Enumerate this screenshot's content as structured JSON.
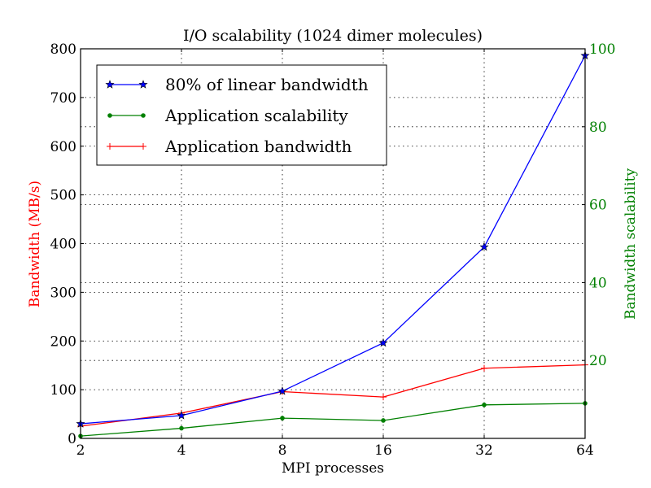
{
  "chart_data": {
    "type": "line",
    "title": "I/O scalability (1024 dimer molecules)",
    "xlabel": "MPI processes",
    "ylabel": "Bandwidth (MB/s)",
    "y2label": "Bandwidth scalability",
    "xscale": "log2",
    "x": [
      2,
      4,
      8,
      16,
      32,
      64
    ],
    "xtick_labels": [
      "2",
      "4",
      "8",
      "16",
      "32",
      "64"
    ],
    "ylim": [
      0,
      800
    ],
    "ytick_labels": [
      "0",
      "100",
      "200",
      "300",
      "400",
      "500",
      "600",
      "700",
      "800"
    ],
    "yticks": [
      0,
      100,
      200,
      300,
      400,
      500,
      600,
      700,
      800
    ],
    "y2lim": [
      0,
      100
    ],
    "y2tick_labels": [
      "20",
      "40",
      "60",
      "80",
      "100"
    ],
    "y2ticks": [
      20,
      40,
      60,
      80,
      100
    ],
    "grid": true,
    "legend_position": "top-left",
    "series": [
      {
        "name": "80% of linear bandwidth",
        "axis": "left",
        "color": "#0000ff",
        "marker": "star",
        "values": [
          30,
          47,
          97,
          196,
          393,
          786
        ]
      },
      {
        "name": "Application scalability",
        "axis": "right",
        "color": "#008000",
        "marker": "dot",
        "values": [
          0.6,
          2.6,
          5.2,
          4.6,
          8.6,
          9.0
        ]
      },
      {
        "name": "Application bandwidth",
        "axis": "left",
        "color": "#ff0000",
        "marker": "plus",
        "values": [
          25,
          52,
          96,
          85,
          144,
          151
        ]
      }
    ],
    "colors": {
      "ylabel": "#ff0000",
      "y2label": "#008000",
      "y2ticks": "#008000"
    }
  }
}
